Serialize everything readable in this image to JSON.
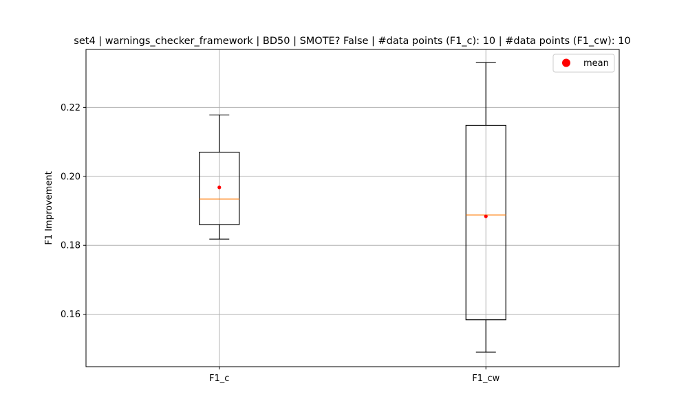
{
  "chart_data": {
    "type": "box",
    "title": "set4 | warnings_checker_framework | BD50 | SMOTE? False | #data points (F1_c): 10 | #data points (F1_cw): 10",
    "xlabel": "",
    "ylabel": "F1 Improvement",
    "ylim": [
      0.1448,
      0.2368
    ],
    "yticks": [
      0.16,
      0.18,
      0.2,
      0.22
    ],
    "ytick_labels": [
      "0.16",
      "0.18",
      "0.20",
      "0.22"
    ],
    "grid": true,
    "legend": {
      "position": "top-right",
      "label": "mean",
      "color": "#ff0000"
    },
    "categories": [
      "F1_c",
      "F1_cw"
    ],
    "boxes": [
      {
        "label": "F1_c",
        "whisker_low": 0.1818,
        "q1": 0.186,
        "median": 0.1934,
        "q3": 0.207,
        "whisker_high": 0.2178,
        "mean": 0.1968
      },
      {
        "label": "F1_cw",
        "whisker_low": 0.149,
        "q1": 0.1584,
        "median": 0.1888,
        "q3": 0.2148,
        "whisker_high": 0.233,
        "mean": 0.1884
      }
    ],
    "colors": {
      "box": "#000000",
      "median": "#ff7f0e",
      "mean": "#ff0000",
      "grid": "#b0b0b0"
    }
  }
}
